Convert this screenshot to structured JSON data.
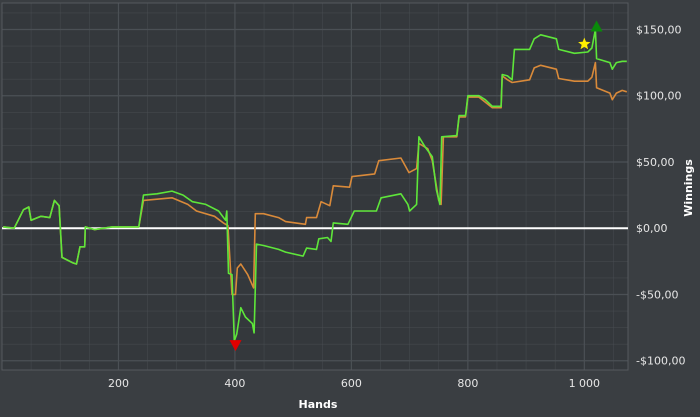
{
  "chart_data": {
    "type": "line",
    "title": "",
    "xlabel": "Hands",
    "ylabel": "Winnings",
    "xlim": [
      0,
      1075
    ],
    "ylim": [
      -107,
      170
    ],
    "grid": true,
    "legend": "none",
    "x_ticks": [
      200,
      400,
      600,
      800,
      1000
    ],
    "x_tick_labels": [
      "200",
      "400",
      "600",
      "800",
      "1 000"
    ],
    "y_ticks": [
      150,
      100,
      50,
      0,
      -50,
      -100
    ],
    "y_tick_labels": [
      "$150,00",
      "$100,00",
      "$50,00",
      "$0,00",
      "-$50,00",
      "-$100,00"
    ],
    "colors": {
      "background": "#3a3e42",
      "plot": "#34383c",
      "grid": "#4b5055",
      "zero_line": "#ffffff",
      "green": "#5ee63a",
      "orange": "#d98a3a"
    },
    "series": [
      {
        "color": "#5ee63a",
        "points": [
          [
            2,
            1
          ],
          [
            21,
            0
          ],
          [
            37,
            14
          ],
          [
            46,
            16
          ],
          [
            50,
            6
          ],
          [
            67,
            9
          ],
          [
            82,
            8
          ],
          [
            90,
            21
          ],
          [
            98,
            17
          ],
          [
            103,
            -22
          ],
          [
            121,
            -26
          ],
          [
            128,
            -27
          ],
          [
            134,
            -14
          ],
          [
            142,
            -14
          ],
          [
            143,
            1
          ],
          [
            159,
            -1
          ],
          [
            189,
            1
          ],
          [
            235,
            1
          ],
          [
            243,
            25
          ],
          [
            266,
            26
          ],
          [
            292,
            28
          ],
          [
            311,
            25
          ],
          [
            327,
            20
          ],
          [
            350,
            18
          ],
          [
            372,
            13
          ],
          [
            384,
            6
          ],
          [
            386,
            13
          ],
          [
            389,
            -34
          ],
          [
            395,
            -35
          ],
          [
            399,
            -85
          ],
          [
            403,
            -80
          ],
          [
            410,
            -60
          ],
          [
            418,
            -67
          ],
          [
            430,
            -72
          ],
          [
            433,
            -79
          ],
          [
            437,
            -12
          ],
          [
            449,
            -13
          ],
          [
            475,
            -16
          ],
          [
            487,
            -18
          ],
          [
            517,
            -21
          ],
          [
            523,
            -15
          ],
          [
            540,
            -16
          ],
          [
            544,
            -8
          ],
          [
            559,
            -7
          ],
          [
            565,
            -10
          ],
          [
            569,
            4
          ],
          [
            594,
            3
          ],
          [
            605,
            13
          ],
          [
            643,
            13
          ],
          [
            651,
            23
          ],
          [
            685,
            26
          ],
          [
            697,
            18
          ],
          [
            700,
            13
          ],
          [
            712,
            18
          ],
          [
            716,
            69
          ],
          [
            727,
            61
          ],
          [
            739,
            54
          ],
          [
            746,
            29
          ],
          [
            752,
            18
          ],
          [
            755,
            69
          ],
          [
            781,
            70
          ],
          [
            785,
            85
          ],
          [
            796,
            85
          ],
          [
            800,
            100
          ],
          [
            819,
            100
          ],
          [
            830,
            97
          ],
          [
            842,
            92
          ],
          [
            857,
            92
          ],
          [
            859,
            116
          ],
          [
            868,
            115
          ],
          [
            876,
            112
          ],
          [
            880,
            135
          ],
          [
            906,
            135
          ],
          [
            914,
            143
          ],
          [
            925,
            146
          ],
          [
            952,
            143
          ],
          [
            956,
            135
          ],
          [
            983,
            132
          ],
          [
            1006,
            133
          ],
          [
            1013,
            136
          ],
          [
            1019,
            150
          ],
          [
            1021,
            128
          ],
          [
            1044,
            125
          ],
          [
            1048,
            120
          ],
          [
            1055,
            125
          ],
          [
            1065,
            126
          ],
          [
            1073,
            126
          ]
        ]
      },
      {
        "color": "#d98a3a",
        "points": [
          [
            2,
            1
          ],
          [
            21,
            0
          ],
          [
            37,
            14
          ],
          [
            46,
            16
          ],
          [
            50,
            6
          ],
          [
            67,
            9
          ],
          [
            82,
            8
          ],
          [
            90,
            21
          ],
          [
            98,
            17
          ],
          [
            103,
            -22
          ],
          [
            121,
            -26
          ],
          [
            128,
            -27
          ],
          [
            134,
            -14
          ],
          [
            142,
            -14
          ],
          [
            143,
            1
          ],
          [
            159,
            -1
          ],
          [
            189,
            1
          ],
          [
            235,
            1
          ],
          [
            243,
            21
          ],
          [
            292,
            23
          ],
          [
            319,
            18
          ],
          [
            334,
            13
          ],
          [
            365,
            9
          ],
          [
            380,
            4
          ],
          [
            388,
            2
          ],
          [
            395,
            -50
          ],
          [
            401,
            -50
          ],
          [
            404,
            -30
          ],
          [
            410,
            -27
          ],
          [
            422,
            -35
          ],
          [
            432,
            -45
          ],
          [
            435,
            11
          ],
          [
            449,
            11
          ],
          [
            475,
            8
          ],
          [
            487,
            5
          ],
          [
            521,
            3
          ],
          [
            523,
            8
          ],
          [
            540,
            8
          ],
          [
            548,
            20
          ],
          [
            563,
            17
          ],
          [
            569,
            32
          ],
          [
            597,
            31
          ],
          [
            601,
            39
          ],
          [
            640,
            41
          ],
          [
            647,
            51
          ],
          [
            685,
            53
          ],
          [
            699,
            42
          ],
          [
            712,
            45
          ],
          [
            716,
            64
          ],
          [
            731,
            60
          ],
          [
            739,
            51
          ],
          [
            750,
            21
          ],
          [
            754,
            18
          ],
          [
            758,
            69
          ],
          [
            781,
            69
          ],
          [
            785,
            84
          ],
          [
            796,
            84
          ],
          [
            800,
            99
          ],
          [
            819,
            99
          ],
          [
            842,
            91
          ],
          [
            857,
            91
          ],
          [
            859,
            115
          ],
          [
            868,
            112
          ],
          [
            876,
            110
          ],
          [
            906,
            112
          ],
          [
            914,
            121
          ],
          [
            925,
            123
          ],
          [
            952,
            120
          ],
          [
            956,
            113
          ],
          [
            983,
            111
          ],
          [
            1006,
            111
          ],
          [
            1013,
            114
          ],
          [
            1019,
            125
          ],
          [
            1021,
            106
          ],
          [
            1044,
            102
          ],
          [
            1048,
            97
          ],
          [
            1055,
            102
          ],
          [
            1065,
            104
          ],
          [
            1073,
            103
          ]
        ]
      }
    ],
    "markers": [
      {
        "type": "min",
        "shape": "triangle-down",
        "color": "#e00000",
        "x": 401,
        "y": -89
      },
      {
        "type": "max",
        "shape": "triangle-up",
        "color": "#0a8a0a",
        "x": 1021,
        "y": 153
      },
      {
        "type": "star",
        "shape": "star",
        "color": "#ffee00",
        "x": 1000,
        "y": 139
      }
    ]
  }
}
